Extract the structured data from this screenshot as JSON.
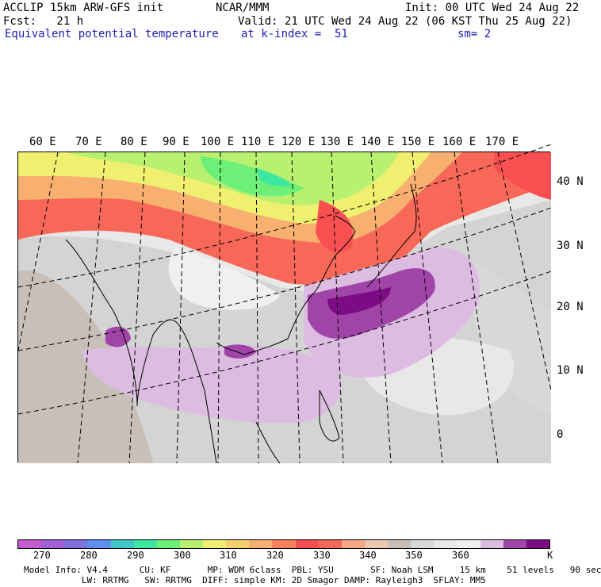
{
  "header": {
    "line1_left": "ACCLIP 15km ARW-GFS init",
    "line1_center": "NCAR/MMM",
    "line1_right": "Init: 00 UTC Wed 24 Aug 22",
    "line2_left": "Fcst:   21 h",
    "line2_right": "Valid: 21 UTC Wed 24 Aug 22 (06 KST Thu 25 Aug 22)",
    "line3_left": "Equivalent potential temperature",
    "line3_center": "at k-index =  51",
    "line3_right": "sm= 2"
  },
  "map": {
    "lon_labels": [
      "60 E",
      "70 E",
      "80 E",
      "90 E",
      "100 E",
      "110 E",
      "120 E",
      "130 E",
      "140 E",
      "150 E",
      "160 E",
      "170 E"
    ],
    "lat_labels": [
      "40 N",
      "30 N",
      "20 N",
      "10 N",
      "0"
    ]
  },
  "colorbar": {
    "colors": [
      "#c45bcf",
      "#a460d8",
      "#8070e0",
      "#5e8ef0",
      "#3cc8c8",
      "#3ce8a0",
      "#6ef078",
      "#b8f070",
      "#f0f070",
      "#f8d070",
      "#f8b070",
      "#f88060",
      "#f85050",
      "#f86858",
      "#f8a888",
      "#f0c8b0",
      "#c8c0b8",
      "#d8d8d8",
      "#e8e8e8",
      "#f0f0f0",
      "#dcbce0",
      "#a044a8",
      "#7c0c84"
    ],
    "ticks": [
      "270",
      "280",
      "290",
      "300",
      "310",
      "320",
      "330",
      "340",
      "350",
      "360",
      "K"
    ]
  },
  "footer": {
    "line1": "Model Info: V4.4      CU: KF       MP: WDM 6class  PBL: YSU       SF: Noah LSM     15 km    51 levels   90 sec",
    "line2": "           LW: RRTMG   SW: RRTMG  DIFF: simple KM: 2D Smagor DAMP: Rayleigh3  SFLAY: MM5"
  }
}
